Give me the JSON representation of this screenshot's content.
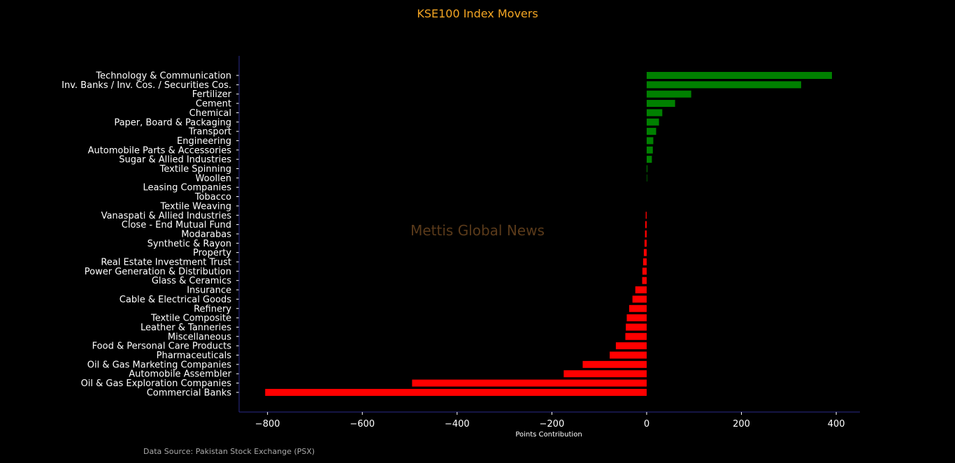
{
  "title": "KSE100 Index Movers",
  "xlabel": "Points Contribution",
  "watermark": "Mettis Global News",
  "source": "Data Source: Pakistan Stock Exchange (PSX)",
  "colors": {
    "positive": "#008000",
    "negative": "#ff0000",
    "title": "#f5a623",
    "axis": "#2a2a8a",
    "watermark": "#5a3a1a"
  },
  "chart_data": {
    "type": "bar",
    "orientation": "horizontal",
    "title": "KSE100 Index Movers",
    "xlabel": "Points Contribution",
    "ylabel": "",
    "xlim": [
      -860,
      450
    ],
    "xticks": [
      -800,
      -600,
      -400,
      -200,
      0,
      200,
      400
    ],
    "xtick_labels": [
      "−800",
      "−600",
      "−400",
      "−200",
      "0",
      "200",
      "400"
    ],
    "grid": false,
    "categories": [
      "Technology & Communication",
      "Inv. Banks / Inv. Cos. / Securities Cos.",
      "Fertilizer",
      "Cement",
      "Chemical",
      "Paper, Board & Packaging",
      "Transport",
      "Engineering",
      "Automobile Parts & Accessories",
      "Sugar & Allied Industries",
      "Textile Spinning",
      "Woollen",
      "Leasing Companies",
      "Tobacco",
      "Textile Weaving",
      "Vanaspati & Allied Industries",
      "Close - End Mutual Fund",
      "Modarabas",
      "Synthetic & Rayon",
      "Property",
      "Real Estate Investment Trust",
      "Power Generation & Distribution",
      "Glass & Ceramics",
      "Insurance",
      "Cable & Electrical Goods",
      "Refinery",
      "Textile Composite",
      "Leather & Tanneries",
      "Miscellaneous",
      "Food & Personal Care Products",
      "Pharmaceuticals",
      "Oil & Gas Marketing Companies",
      "Automobile Assembler",
      "Oil & Gas Exploration Companies",
      "Commercial Banks"
    ],
    "values": [
      391,
      326,
      94,
      60,
      33,
      26,
      20,
      14,
      13,
      11,
      1.5,
      1,
      0,
      0,
      0,
      -2,
      -3,
      -3.5,
      -4.5,
      -6,
      -7.5,
      -9,
      -9.5,
      -24,
      -30,
      -37,
      -42,
      -44,
      -45,
      -65,
      -78,
      -135,
      -175,
      -495,
      -805
    ]
  }
}
